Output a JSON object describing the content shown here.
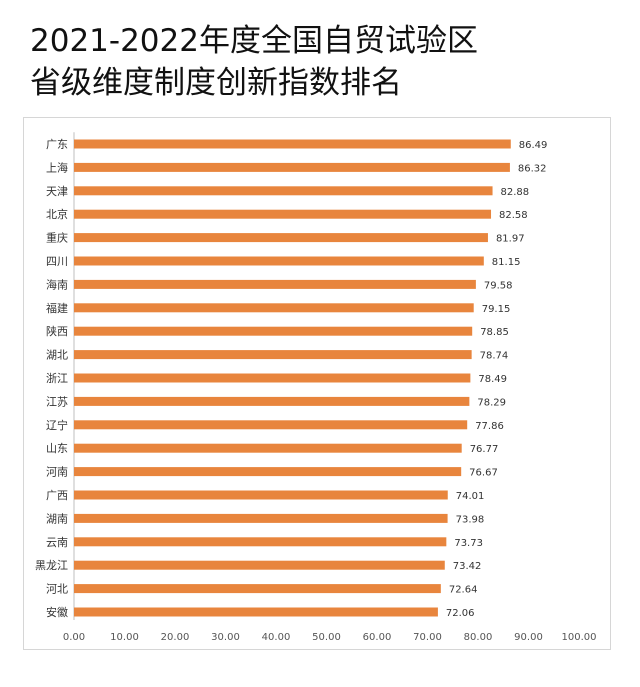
{
  "header": {
    "title_line1": "2021-2022年度全国自贸试验区",
    "title_line2": "省级维度制度创新指数排名"
  },
  "colors": {
    "bar": "#E8853D",
    "axis": "#bfbfbf"
  },
  "chart_data": {
    "type": "bar",
    "orientation": "horizontal",
    "categories": [
      "广东",
      "上海",
      "天津",
      "北京",
      "重庆",
      "四川",
      "海南",
      "福建",
      "陕西",
      "湖北",
      "浙江",
      "江苏",
      "辽宁",
      "山东",
      "河南",
      "广西",
      "湖南",
      "云南",
      "黑龙江",
      "河北",
      "安徽"
    ],
    "values": [
      86.49,
      86.32,
      82.88,
      82.58,
      81.97,
      81.15,
      79.58,
      79.15,
      78.85,
      78.74,
      78.49,
      78.29,
      77.86,
      76.77,
      76.67,
      74.01,
      73.98,
      73.73,
      73.42,
      72.64,
      72.06
    ],
    "value_labels": [
      "86.49",
      "86.32",
      "82.88",
      "82.58",
      "81.97",
      "81.15",
      "79.58",
      "79.15",
      "78.85",
      "78.74",
      "78.49",
      "78.29",
      "77.86",
      "76.77",
      "76.67",
      "74.01",
      "73.98",
      "73.73",
      "73.42",
      "72.64",
      "72.06"
    ],
    "xlim": [
      0,
      100
    ],
    "x_ticks": [
      "0.00",
      "10.00",
      "20.00",
      "30.00",
      "40.00",
      "50.00",
      "60.00",
      "70.00",
      "80.00",
      "90.00",
      "100.00"
    ],
    "grid": false,
    "legend": "none"
  }
}
